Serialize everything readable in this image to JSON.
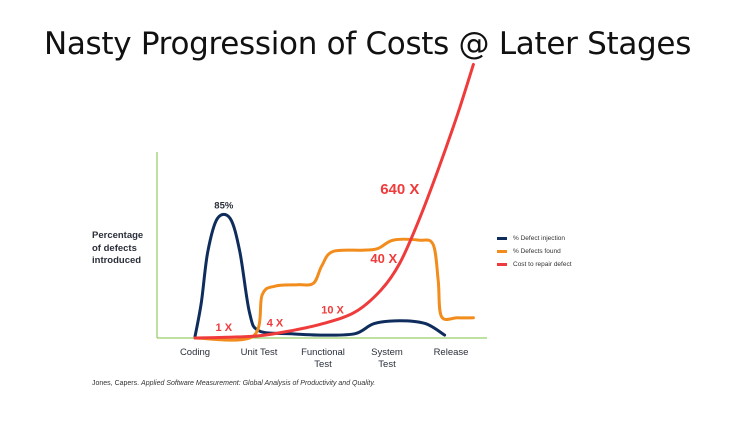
{
  "slide": {
    "title": "Nasty Progression of Costs @ Later Stages"
  },
  "chart_data": {
    "type": "line",
    "ylabel": "Percentage of defects introduced",
    "ylabel_lines": [
      "Percentage",
      "of defects",
      "introduced"
    ],
    "categories": [
      "Coding",
      "Unit Test",
      "Functional Test",
      "System Test",
      "Release"
    ],
    "category_labels": [
      [
        "Coding"
      ],
      [
        "Unit Test"
      ],
      [
        "Functional",
        "Test"
      ],
      [
        "System",
        "Test"
      ],
      [
        "Release"
      ]
    ],
    "grid": false,
    "legend_position": "right",
    "series": [
      {
        "name": "% Defect injection",
        "color": "#0f2d5c",
        "points": [
          [
            0,
            1
          ],
          [
            0.1,
            25
          ],
          [
            0.2,
            60
          ],
          [
            0.35,
            83
          ],
          [
            0.55,
            83
          ],
          [
            0.7,
            60
          ],
          [
            0.85,
            18
          ],
          [
            1,
            5
          ],
          [
            1.5,
            3
          ],
          [
            2,
            2
          ],
          [
            2.5,
            3
          ],
          [
            2.8,
            10
          ],
          [
            3.2,
            12
          ],
          [
            3.6,
            10
          ],
          [
            3.9,
            2
          ]
        ]
      },
      {
        "name": "% Defects found",
        "color": "#f28c1c",
        "points": [
          [
            0,
            0
          ],
          [
            0.9,
            1
          ],
          [
            1.05,
            30
          ],
          [
            1.25,
            36
          ],
          [
            1.6,
            37
          ],
          [
            1.85,
            38
          ],
          [
            1.98,
            50
          ],
          [
            2.15,
            60
          ],
          [
            2.6,
            61
          ],
          [
            2.85,
            62
          ],
          [
            3.1,
            68
          ],
          [
            3.5,
            68
          ],
          [
            3.72,
            65
          ],
          [
            3.8,
            40
          ],
          [
            3.85,
            15
          ],
          [
            4.1,
            14
          ],
          [
            4.35,
            14
          ]
        ]
      },
      {
        "name": "Cost to repair defect",
        "color": "#ef3b3b",
        "points": [
          [
            0,
            0
          ],
          [
            0.5,
            0.5
          ],
          [
            1,
            1.5
          ],
          [
            1.5,
            5
          ],
          [
            2,
            10
          ],
          [
            2.5,
            18
          ],
          [
            2.9,
            33
          ],
          [
            3.2,
            52
          ],
          [
            3.5,
            82
          ],
          [
            3.8,
            117
          ],
          [
            4.1,
            155
          ],
          [
            4.35,
            190
          ]
        ]
      }
    ],
    "annotations": [
      {
        "text": "85%",
        "x": 0.45,
        "y": 90,
        "color": "#2b2f3a"
      },
      {
        "text": "1 X",
        "x": 0.45,
        "y": 5,
        "color": "#ef3b3b"
      },
      {
        "text": "4 X",
        "x": 1.25,
        "y": 8,
        "color": "#ef3b3b"
      },
      {
        "text": "10 X",
        "x": 2.15,
        "y": 17,
        "color": "#ef3b3b"
      },
      {
        "text": "40 X",
        "x": 2.95,
        "y": 52,
        "color": "#ef3b3b"
      },
      {
        "text": "640 X",
        "x": 3.2,
        "y": 100,
        "color": "#ef3b3b"
      }
    ],
    "source": {
      "author": "Jones, Capers. ",
      "work": "Applied Software Measurement: Global Analysis of Productivity and Quality."
    }
  }
}
